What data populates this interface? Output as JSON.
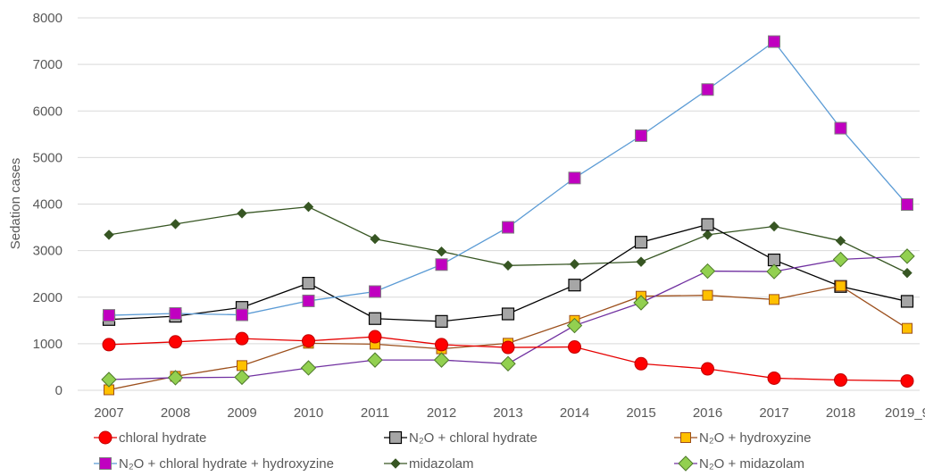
{
  "chart_data": {
    "type": "line",
    "ylabel": "Sedation cases",
    "xlabel": "",
    "ylim": [
      0,
      8000
    ],
    "yticks": [
      0,
      1000,
      2000,
      3000,
      4000,
      5000,
      6000,
      7000,
      8000
    ],
    "grid": true,
    "legend_position": "bottom",
    "categories": [
      "2007",
      "2008",
      "2009",
      "2010",
      "2011",
      "2012",
      "2013",
      "2014",
      "2015",
      "2016",
      "2017",
      "2018",
      "2019_9"
    ],
    "series": [
      {
        "name": "chloral hydrate",
        "color": "#e60000",
        "marker": "circle",
        "values": [
          980,
          1040,
          1110,
          1060,
          1150,
          980,
          920,
          930,
          570,
          460,
          260,
          220,
          200
        ]
      },
      {
        "name": "N₂O + chloral hydrate",
        "color": "#000000",
        "marker": "square-gray",
        "values": [
          1520,
          1590,
          1780,
          2300,
          1540,
          1480,
          1640,
          2260,
          3180,
          3560,
          2800,
          2230,
          1910
        ]
      },
      {
        "name": "N₂O + hydroxyzine",
        "color": "#9c4f1c",
        "marker": "square-orange",
        "values": [
          10,
          300,
          530,
          1010,
          990,
          890,
          1010,
          1500,
          2020,
          2040,
          1950,
          2240,
          1330
        ]
      },
      {
        "name": "N₂O +  chloral hydrate + hydroxyzine",
        "color": "#5b9bd5",
        "marker": "square-magenta",
        "values": [
          1610,
          1650,
          1620,
          1920,
          2120,
          2700,
          3500,
          4560,
          5470,
          6460,
          7490,
          5630,
          3990
        ]
      },
      {
        "name": "midazolam",
        "color": "#375623",
        "marker": "diamond-dark",
        "values": [
          3340,
          3570,
          3800,
          3940,
          3250,
          2980,
          2680,
          2710,
          2760,
          3340,
          3520,
          3210,
          2520
        ]
      },
      {
        "name": "N₂O + midazolam",
        "color": "#7030a0",
        "marker": "diamond-green",
        "values": [
          230,
          270,
          280,
          480,
          650,
          650,
          570,
          1390,
          1880,
          2560,
          2550,
          2810,
          2880
        ]
      }
    ]
  }
}
